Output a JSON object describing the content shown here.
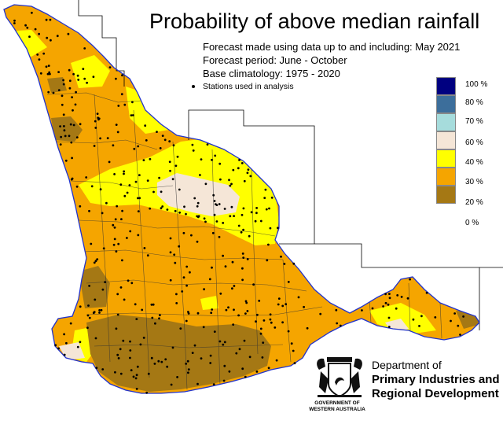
{
  "title": "Probability of above median rainfall",
  "info": {
    "forecast_made": "Forecast made using data up to and including: May 2021",
    "forecast_period": "Forecast period: June - October",
    "base_climatology": "Base climatology: 1975 - 2020",
    "stations_label": "Stations used in analysis"
  },
  "legend": [
    {
      "label": "100 %",
      "color": "#000080"
    },
    {
      "label": "80 %",
      "color": "#3c6e9b"
    },
    {
      "label": "70 %",
      "color": "#a6dcdc"
    },
    {
      "label": "60 %",
      "color": "#f5e6d7"
    },
    {
      "label": "40 %",
      "color": "#ffff00"
    },
    {
      "label": "30 %",
      "color": "#f5a500"
    },
    {
      "label": "20 %",
      "color": "#a57814"
    },
    {
      "label": "0 %",
      "color": "#ffffff"
    }
  ],
  "department": {
    "line1": "Department of",
    "line2": "Primary Industries and",
    "line3": "Regional Development"
  },
  "crest_text": {
    "line1": "GOVERNMENT OF",
    "line2": "WESTERN AUSTRALIA"
  },
  "colors": {
    "coast": "#2233cc",
    "sea": "#ffffff",
    "boundary": "#333333"
  }
}
